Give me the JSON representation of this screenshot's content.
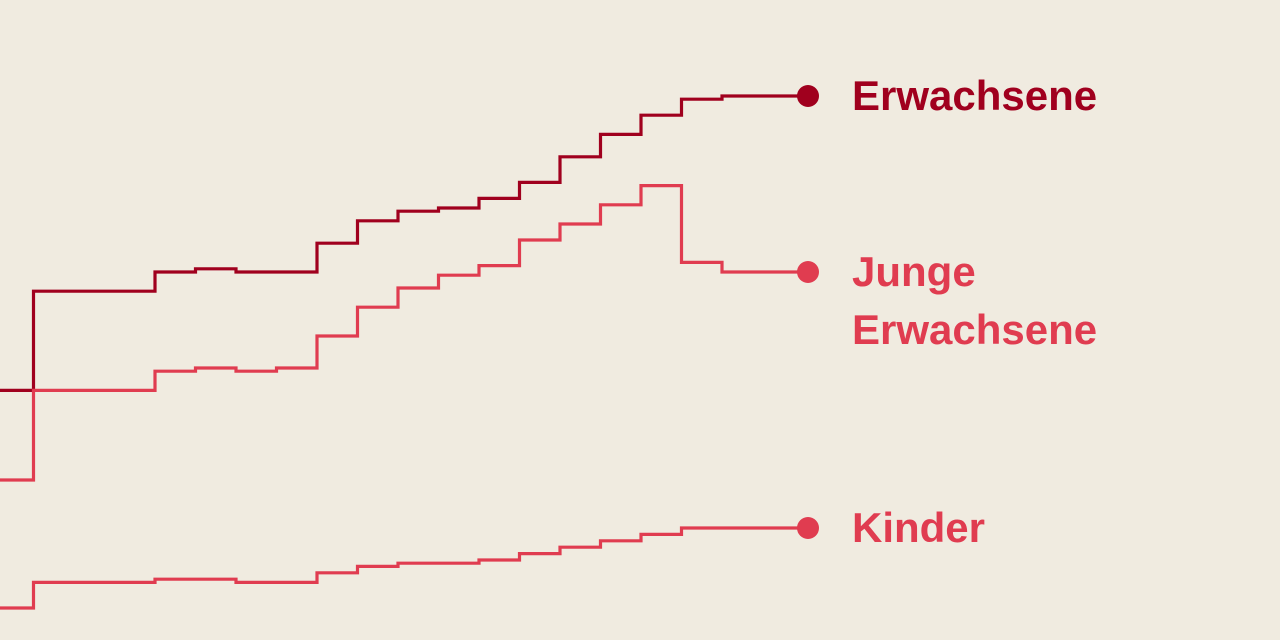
{
  "chart_data": {
    "type": "line",
    "step": true,
    "title": "",
    "xlabel": "",
    "ylabel": "",
    "x": [
      0,
      1,
      2,
      3,
      4,
      5,
      6,
      7,
      8,
      9,
      10,
      11,
      12,
      13,
      14,
      15,
      16,
      17,
      18,
      19
    ],
    "ylim": [
      0,
      100
    ],
    "grid": false,
    "legend": "direct-labels-right",
    "series": [
      {
        "name": "Erwachsene",
        "color": "#a0001e",
        "label_lines": [
          "Erwachsene"
        ],
        "values": [
          39,
          54.5,
          54.5,
          54.5,
          57.5,
          58,
          57.5,
          57.5,
          62,
          65.5,
          67,
          67.5,
          69,
          71.5,
          75.5,
          79,
          82,
          84.5,
          85,
          85
        ]
      },
      {
        "name": "Junge Erwachsene",
        "color": "#e03c50",
        "label_lines": [
          "Junge",
          "Erwachsene"
        ],
        "values": [
          25,
          39,
          39,
          39,
          42,
          42.5,
          42,
          42.5,
          47.5,
          52,
          55,
          57,
          58.5,
          62.5,
          65,
          68,
          71,
          59,
          57.5,
          57.5
        ]
      },
      {
        "name": "Kinder",
        "color": "#e03c50",
        "label_lines": [
          "Kinder"
        ],
        "values": [
          5,
          9,
          9,
          9,
          9.5,
          9.5,
          9,
          9,
          10.5,
          11.5,
          12,
          12,
          12.5,
          13.5,
          14.5,
          15.5,
          16.5,
          17.5,
          17.5,
          17.5
        ]
      }
    ]
  }
}
